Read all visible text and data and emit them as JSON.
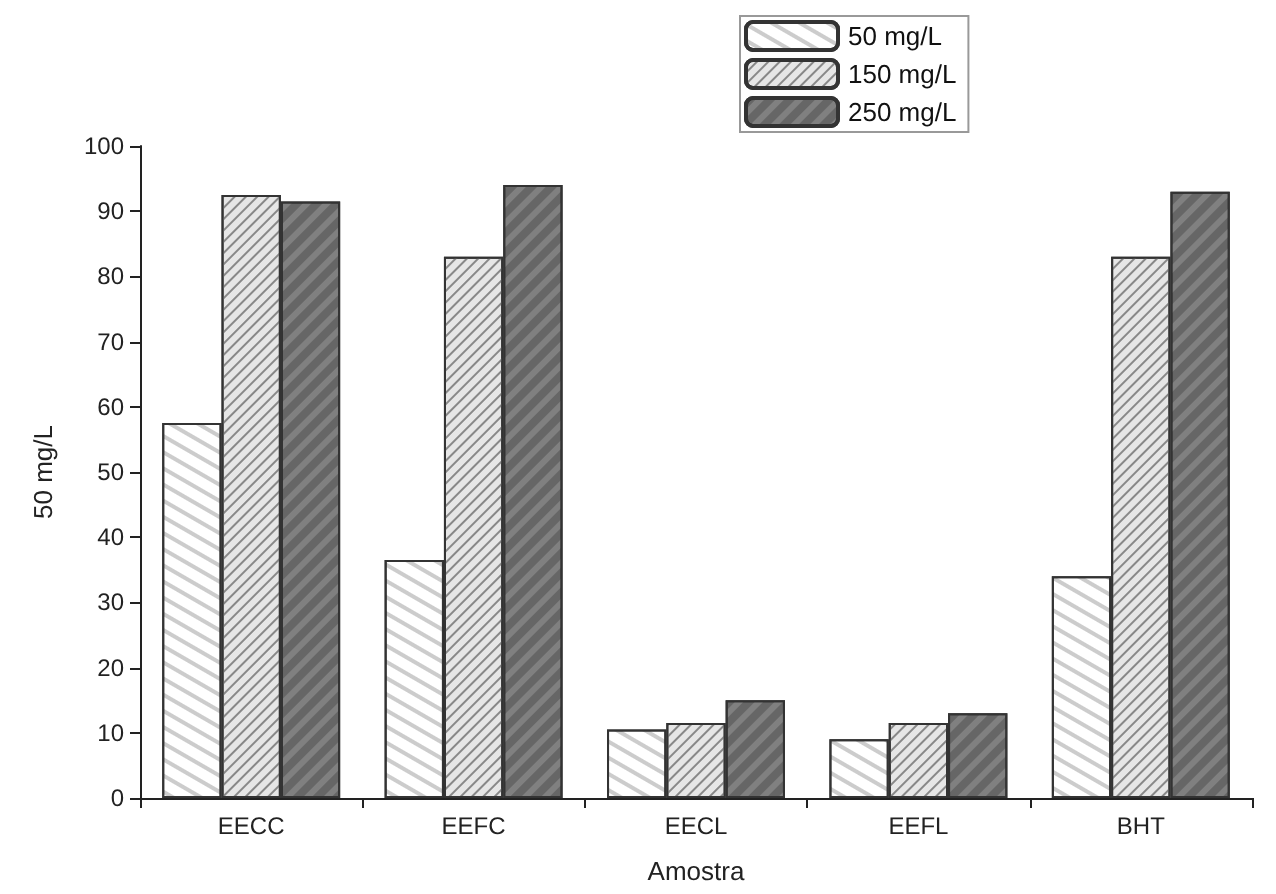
{
  "chart_data": {
    "type": "bar",
    "xlabel": "Amostra",
    "ylabel": "50 mg/L",
    "categories": [
      "EECC",
      "EEFC",
      "EECL",
      "EEFL",
      "BHT"
    ],
    "series": [
      {
        "name": "50 mg/L",
        "color": "#ffffff",
        "values": [
          57.5,
          36.5,
          10.5,
          9,
          34
        ]
      },
      {
        "name": "150 mg/L",
        "color": "#e6e6e6",
        "values": [
          92.5,
          83,
          11.5,
          11.5,
          83
        ]
      },
      {
        "name": "250 mg/L",
        "color": "#808080",
        "values": [
          91.5,
          94,
          15,
          13,
          93
        ]
      }
    ],
    "ylim": [
      0,
      100
    ],
    "yticks": [
      0,
      10,
      20,
      30,
      40,
      50,
      60,
      70,
      80,
      90,
      100
    ],
    "grid": false,
    "legend": "top right"
  }
}
